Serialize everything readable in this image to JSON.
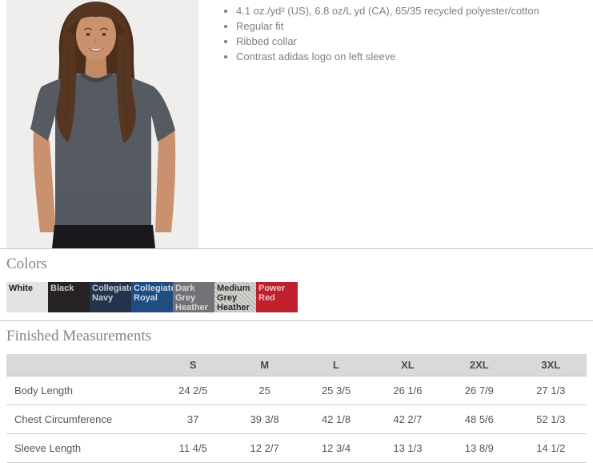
{
  "product": {
    "features": [
      "4.1 oz./yd² (US), 6.8 oz/L yd (CA), 65/35 recycled polyester/cotton",
      "Regular fit",
      "Ribbed collar",
      "Contrast adidas logo on left sleeve"
    ]
  },
  "colors": {
    "title": "Colors",
    "swatches": [
      {
        "label": "White",
        "bg": "#e4e3e1",
        "text_color": "#1c1c1a",
        "heather": false
      },
      {
        "label": "Black",
        "bg": "#272324",
        "text_color": "#cbc9c9",
        "heather": false
      },
      {
        "label": "Collegiate Navy",
        "bg": "#24344d",
        "text_color": "#c6ccd6",
        "heather": false
      },
      {
        "label": "Collegiate Royal",
        "bg": "#1f4c81",
        "text_color": "#cdd8e4",
        "heather": false
      },
      {
        "label": "Dark Grey Heather",
        "bg": "#717376",
        "text_color": "#d8d8d8",
        "heather": false
      },
      {
        "label": "Medium Grey Heather",
        "bg": "#c7c5c0",
        "text_color": "#2b2b2b",
        "heather": true
      },
      {
        "label": "Power Red",
        "bg": "#c01f2e",
        "text_color": "#edc4c9",
        "heather": false
      }
    ]
  },
  "measurements": {
    "title": "Finished Measurements",
    "columns": [
      "S",
      "M",
      "L",
      "XL",
      "2XL",
      "3XL"
    ],
    "rows": [
      {
        "label": "Body Length",
        "values": [
          "24 2/5",
          "25",
          "25 3/5",
          "26 1/6",
          "26 7/9",
          "27 1/3"
        ]
      },
      {
        "label": "Chest Circumference",
        "values": [
          "37",
          "39 3/8",
          "42 1/8",
          "42 2/7",
          "48 5/6",
          "52 1/3"
        ]
      },
      {
        "label": "Sleeve Length",
        "values": [
          "11 4/5",
          "12 2/7",
          "12 3/4",
          "13 1/3",
          "13 8/9",
          "14 1/2"
        ]
      }
    ]
  }
}
